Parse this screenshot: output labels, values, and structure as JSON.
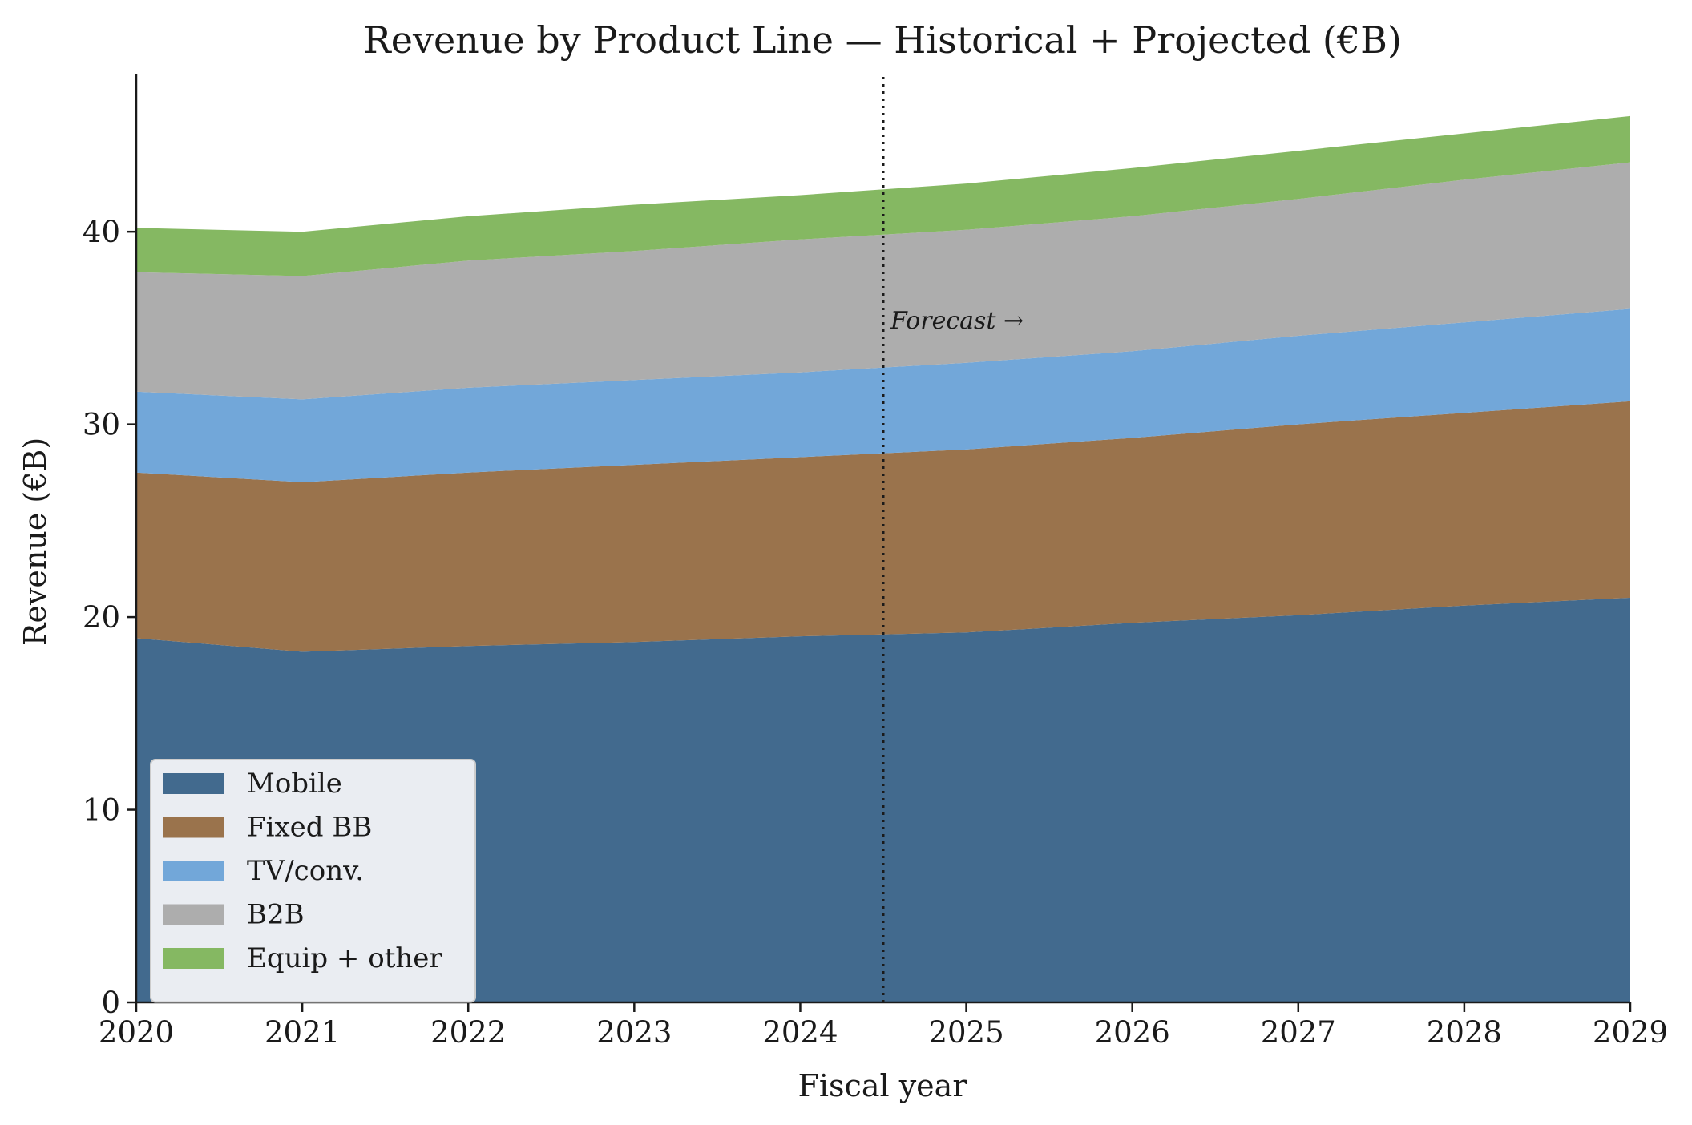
{
  "chart_data": {
    "type": "area",
    "stacked": true,
    "title": "Revenue by Product Line — Historical + Projected (€B)",
    "xlabel": "Fiscal year",
    "ylabel": "Revenue (€B)",
    "x": [
      2020,
      2021,
      2022,
      2023,
      2024,
      2025,
      2026,
      2027,
      2028,
      2029
    ],
    "xlim": [
      2020,
      2029
    ],
    "ylim": [
      0,
      48.2
    ],
    "xticks": [
      "2020",
      "2021",
      "2022",
      "2023",
      "2024",
      "2025",
      "2026",
      "2027",
      "2028",
      "2029"
    ],
    "yticks": [
      "0",
      "10",
      "20",
      "30",
      "40"
    ],
    "grid": false,
    "legend_position": "lower-left",
    "series": [
      {
        "name": "Mobile",
        "color": "#426a8e",
        "values": [
          18.9,
          18.2,
          18.5,
          18.7,
          19.0,
          19.2,
          19.7,
          20.1,
          20.6,
          21.0
        ]
      },
      {
        "name": "Fixed BB",
        "color": "#9a734c",
        "values": [
          8.6,
          8.8,
          9.0,
          9.2,
          9.3,
          9.5,
          9.6,
          9.9,
          10.0,
          10.2
        ]
      },
      {
        "name": "TV/conv.",
        "color": "#72a7d9",
        "values": [
          4.2,
          4.3,
          4.4,
          4.4,
          4.4,
          4.5,
          4.5,
          4.6,
          4.7,
          4.8
        ]
      },
      {
        "name": "B2B",
        "color": "#adadad",
        "values": [
          6.2,
          6.4,
          6.6,
          6.7,
          6.9,
          6.9,
          7.0,
          7.1,
          7.4,
          7.6
        ]
      },
      {
        "name": "Equip + other",
        "color": "#85b862",
        "values": [
          2.3,
          2.3,
          2.3,
          2.4,
          2.3,
          2.4,
          2.5,
          2.5,
          2.4,
          2.4
        ]
      }
    ],
    "forecast_line_x": 2024.5,
    "annotation": "Forecast →"
  }
}
